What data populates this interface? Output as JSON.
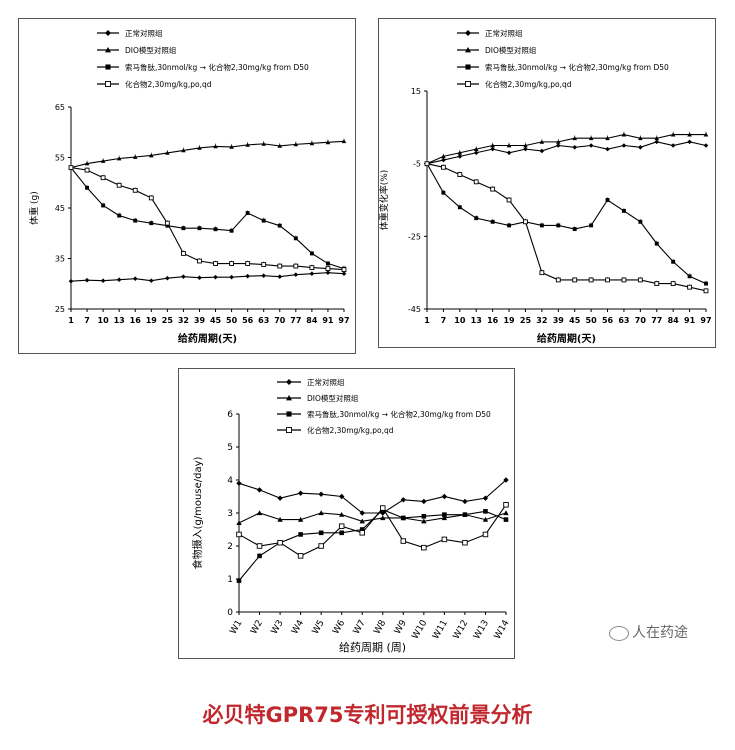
{
  "watermark": "人在药途",
  "footer_title": "必贝特GPR75专利可授权前景分析",
  "legend_entries": [
    "正常对照组",
    "DIO模型对照组",
    "索马鲁肽,30nmol/kg → 化合物2,30mg/kg from D50",
    "化合物2,30mg/kg,po,qd"
  ],
  "chart_data": [
    {
      "type": "line",
      "ylabel": "体重 (g)",
      "xlabel": "给药周期(天)",
      "ylim": [
        25,
        65
      ],
      "yticks": [
        25,
        35,
        45,
        55,
        65
      ],
      "xticks": [
        "1",
        "7",
        "10",
        "13",
        "16",
        "19",
        "25",
        "32",
        "39",
        "45",
        "50",
        "56",
        "63",
        "70",
        "77",
        "84",
        "91",
        "97"
      ],
      "series": [
        {
          "name": "正常对照组",
          "marker": "diamond",
          "values": [
            30.5,
            30.7,
            30.6,
            30.8,
            31.0,
            30.6,
            31.1,
            31.4,
            31.2,
            31.3,
            31.3,
            31.5,
            31.6,
            31.4,
            31.8,
            32.0,
            32.2,
            32.0
          ]
        },
        {
          "name": "DIO模型对照组",
          "marker": "triangle",
          "values": [
            53.0,
            53.8,
            54.3,
            54.8,
            55.1,
            55.4,
            55.9,
            56.4,
            56.9,
            57.2,
            57.1,
            57.5,
            57.7,
            57.3,
            57.6,
            57.8,
            58.0,
            58.2
          ]
        },
        {
          "name": "索马鲁肽,30nmol/kg → 化合物2,30mg/kg from D50",
          "marker": "square",
          "values": [
            53.0,
            49.0,
            45.5,
            43.5,
            42.5,
            42.0,
            41.5,
            41.0,
            41.0,
            40.8,
            40.5,
            44.0,
            42.5,
            41.5,
            39.0,
            36.0,
            34.0,
            33.0
          ]
        },
        {
          "name": "化合物2,30mg/kg,po,qd",
          "marker": "open-square",
          "values": [
            53.0,
            52.5,
            51.0,
            49.5,
            48.5,
            47.0,
            42.0,
            36.0,
            34.5,
            34.0,
            34.0,
            34.0,
            33.8,
            33.5,
            33.5,
            33.2,
            33.0,
            32.8
          ]
        }
      ]
    },
    {
      "type": "line",
      "ylabel": "体重变化率(%)",
      "xlabel": "给药周期(天)",
      "ylim": [
        -45,
        15
      ],
      "yticks": [
        -45,
        -25,
        -5,
        15
      ],
      "xticks": [
        "1",
        "7",
        "10",
        "13",
        "16",
        "19",
        "25",
        "32",
        "39",
        "45",
        "50",
        "56",
        "63",
        "70",
        "77",
        "84",
        "91",
        "97"
      ],
      "series": [
        {
          "name": "正常对照组",
          "marker": "diamond",
          "values": [
            -5,
            -4,
            -3,
            -2,
            -1,
            -2,
            -1,
            -1.5,
            0,
            -0.5,
            0,
            -1,
            0,
            -0.5,
            1,
            0,
            1,
            0
          ]
        },
        {
          "name": "DIO模型对照组",
          "marker": "triangle",
          "values": [
            -5,
            -3,
            -2,
            -1,
            0,
            0,
            0,
            1,
            1,
            2,
            2,
            2,
            3,
            2,
            2,
            3,
            3,
            3
          ]
        },
        {
          "name": "索马鲁肽,30nmol/kg → 化合物2,30mg/kg from D50",
          "marker": "square",
          "values": [
            -5,
            -13,
            -17,
            -20,
            -21,
            -22,
            -21,
            -22,
            -22,
            -23,
            -22,
            -15,
            -18,
            -21,
            -27,
            -32,
            -36,
            -38
          ]
        },
        {
          "name": "化合物2,30mg/kg,po,qd",
          "marker": "open-square",
          "values": [
            -5,
            -6,
            -8,
            -10,
            -12,
            -15,
            -21,
            -35,
            -37,
            -37,
            -37,
            -37,
            -37,
            -37,
            -38,
            -38,
            -39,
            -40
          ]
        }
      ]
    },
    {
      "type": "line",
      "ylabel": "食物摄入(g/mouse/day)",
      "xlabel": "给药周期 (周)",
      "ylim": [
        0,
        6
      ],
      "yticks": [
        0,
        1,
        2,
        3,
        4,
        5,
        6
      ],
      "categories": [
        "W1",
        "W2",
        "W3",
        "W4",
        "W5",
        "W6",
        "W7",
        "W8",
        "W9",
        "W10",
        "W11",
        "W12",
        "W13",
        "W14"
      ],
      "series": [
        {
          "name": "正常对照组",
          "marker": "diamond",
          "values": [
            3.9,
            3.7,
            3.45,
            3.6,
            3.57,
            3.5,
            3.0,
            3.0,
            3.4,
            3.35,
            3.5,
            3.35,
            3.45,
            4.0
          ]
        },
        {
          "name": "DIO模型对照组",
          "marker": "triangle",
          "values": [
            2.7,
            3.0,
            2.8,
            2.8,
            3.0,
            2.95,
            2.75,
            2.85,
            2.85,
            2.75,
            2.85,
            2.95,
            2.8,
            3.0
          ]
        },
        {
          "name": "索马鲁肽,30nmol/kg → 化合物2,30mg/kg from D50",
          "marker": "square",
          "values": [
            0.95,
            1.7,
            2.1,
            2.35,
            2.4,
            2.4,
            2.5,
            3.1,
            2.85,
            2.9,
            2.95,
            2.95,
            3.05,
            2.8
          ]
        },
        {
          "name": "化合物2,30mg/kg,po,qd",
          "marker": "open-square",
          "values": [
            2.35,
            2.0,
            2.1,
            1.7,
            2.0,
            2.6,
            2.4,
            3.15,
            2.15,
            1.95,
            2.2,
            2.1,
            2.35,
            3.25
          ]
        }
      ]
    }
  ]
}
